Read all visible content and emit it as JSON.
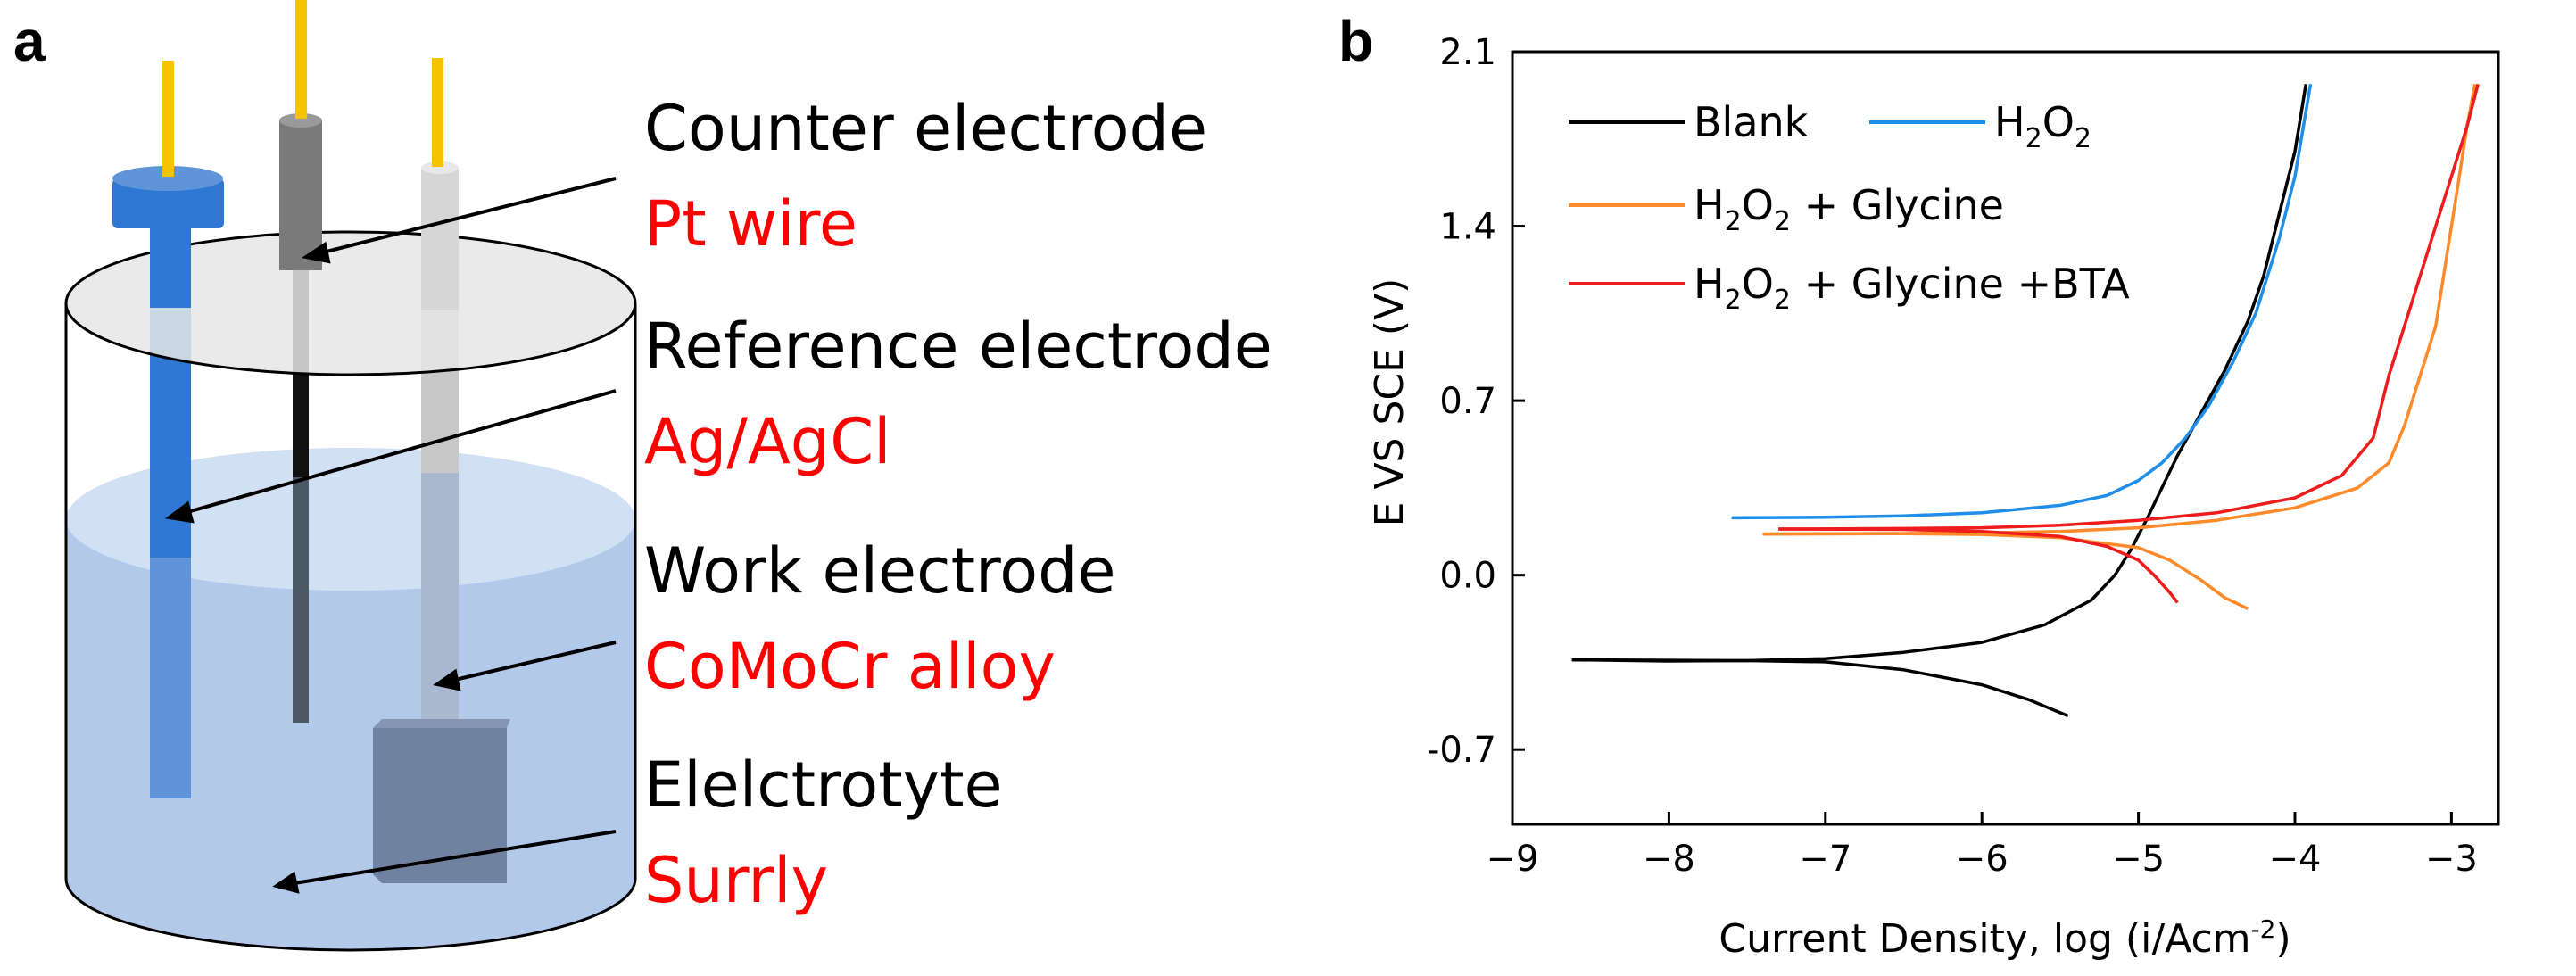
{
  "panel_a": {
    "letter": "a",
    "labels": [
      {
        "title": "Counter electrode",
        "material": "Pt wire"
      },
      {
        "title": "Reference electrode",
        "material": "Ag/AgCl"
      },
      {
        "title": "Work electrode",
        "material": "CoMoCr alloy"
      },
      {
        "title": "Elelctrotyte",
        "material": "Surrly"
      }
    ],
    "colors": {
      "label_black": "#000000",
      "label_red": "#ff0000",
      "electrolyte": "#b3c9ea",
      "reference_electrode": "#2f77d2",
      "counter_electrode": "#7a7a7a",
      "work_electrode": "#c8c8c8",
      "alloy_block": "#6f82a0",
      "wire": "#f7c300"
    }
  },
  "panel_b": {
    "letter": "b"
  },
  "chart_data": {
    "type": "line",
    "xlabel": "Current Density, log (i/Acm",
    "xlabel_sup": "-2",
    "xlabel_end": ")",
    "ylabel": "E VS SCE (V)",
    "xlim": [
      -9,
      -2.7
    ],
    "ylim": [
      -1.0,
      2.1
    ],
    "xticks": [
      -9,
      -8,
      -7,
      -6,
      -5,
      -4,
      -3
    ],
    "xtick_labels": [
      "−9",
      "−8",
      "−7",
      "−6",
      "−5",
      "−4",
      "−3"
    ],
    "yticks": [
      2.1,
      1.4,
      0.7,
      0.0,
      -0.7
    ],
    "ytick_labels": [
      "2.1",
      "1.4",
      "0.7",
      "0.0",
      "-0.7"
    ],
    "grid": false,
    "legend_position": "top-left",
    "series": [
      {
        "name": "Blank",
        "legend_parts": [
          "Blank"
        ],
        "color": "#000000",
        "segments": [
          [
            [
              -8.62,
              -0.34
            ],
            [
              -8.0,
              -0.345
            ],
            [
              -7.5,
              -0.343
            ],
            [
              -7.0,
              -0.335
            ],
            [
              -6.5,
              -0.31
            ],
            [
              -6.0,
              -0.27
            ],
            [
              -5.6,
              -0.2
            ],
            [
              -5.3,
              -0.1
            ],
            [
              -5.15,
              0.0
            ],
            [
              -5.05,
              0.1
            ],
            [
              -4.95,
              0.22
            ],
            [
              -4.85,
              0.35
            ],
            [
              -4.75,
              0.48
            ],
            [
              -4.6,
              0.65
            ],
            [
              -4.45,
              0.82
            ],
            [
              -4.3,
              1.02
            ],
            [
              -4.2,
              1.2
            ],
            [
              -4.1,
              1.45
            ],
            [
              -4.0,
              1.7
            ],
            [
              -3.93,
              1.97
            ]
          ],
          [
            [
              -8.62,
              -0.34
            ],
            [
              -7.5,
              -0.343
            ],
            [
              -7.0,
              -0.348
            ],
            [
              -6.5,
              -0.38
            ],
            [
              -6.0,
              -0.44
            ],
            [
              -5.7,
              -0.5
            ],
            [
              -5.45,
              -0.565
            ]
          ]
        ]
      },
      {
        "name": "H2O2",
        "legend_parts": [
          "H",
          "2",
          "O",
          "2"
        ],
        "color": "#1e8ee8",
        "segments": [
          [
            [
              -7.6,
              0.23
            ],
            [
              -7.0,
              0.232
            ],
            [
              -6.5,
              0.238
            ],
            [
              -6.0,
              0.25
            ],
            [
              -5.5,
              0.28
            ],
            [
              -5.2,
              0.32
            ],
            [
              -5.0,
              0.38
            ],
            [
              -4.85,
              0.45
            ],
            [
              -4.7,
              0.55
            ],
            [
              -4.55,
              0.68
            ],
            [
              -4.4,
              0.85
            ],
            [
              -4.25,
              1.05
            ],
            [
              -4.1,
              1.35
            ],
            [
              -4.0,
              1.6
            ],
            [
              -3.9,
              1.97
            ]
          ]
        ]
      },
      {
        "name": "H2O2 + Glycine",
        "legend_parts": [
          "H",
          "2",
          "O",
          "2",
          " + Glycine"
        ],
        "color": "#ff8a2a",
        "segments": [
          [
            [
              -7.4,
              0.165
            ],
            [
              -6.5,
              0.167
            ],
            [
              -6.0,
              0.17
            ],
            [
              -5.5,
              0.175
            ],
            [
              -5.0,
              0.19
            ],
            [
              -4.5,
              0.22
            ],
            [
              -4.0,
              0.27
            ],
            [
              -3.6,
              0.35
            ],
            [
              -3.4,
              0.45
            ],
            [
              -3.3,
              0.6
            ],
            [
              -3.2,
              0.8
            ],
            [
              -3.1,
              1.0
            ],
            [
              -3.05,
              1.2
            ],
            [
              -3.0,
              1.4
            ],
            [
              -2.95,
              1.6
            ],
            [
              -2.9,
              1.8
            ],
            [
              -2.85,
              1.97
            ]
          ],
          [
            [
              -7.4,
              0.165
            ],
            [
              -6.5,
              0.166
            ],
            [
              -6.0,
              0.163
            ],
            [
              -5.5,
              0.15
            ],
            [
              -5.0,
              0.11
            ],
            [
              -4.8,
              0.06
            ],
            [
              -4.6,
              -0.02
            ],
            [
              -4.45,
              -0.09
            ],
            [
              -4.3,
              -0.135
            ]
          ]
        ]
      },
      {
        "name": "H2O2 + Glycine +BTA",
        "legend_parts": [
          "H",
          "2",
          "O",
          "2",
          " + Glycine +BTA"
        ],
        "color": "#ee1c1c",
        "segments": [
          [
            [
              -7.3,
              0.185
            ],
            [
              -6.5,
              0.187
            ],
            [
              -6.0,
              0.19
            ],
            [
              -5.5,
              0.2
            ],
            [
              -5.0,
              0.22
            ],
            [
              -4.5,
              0.25
            ],
            [
              -4.0,
              0.31
            ],
            [
              -3.7,
              0.4
            ],
            [
              -3.5,
              0.55
            ],
            [
              -3.4,
              0.8
            ],
            [
              -3.3,
              1.0
            ],
            [
              -3.2,
              1.2
            ],
            [
              -3.1,
              1.4
            ],
            [
              -3.0,
              1.6
            ],
            [
              -2.9,
              1.8
            ],
            [
              -2.83,
              1.97
            ]
          ],
          [
            [
              -7.3,
              0.185
            ],
            [
              -6.5,
              0.183
            ],
            [
              -6.0,
              0.175
            ],
            [
              -5.5,
              0.155
            ],
            [
              -5.2,
              0.115
            ],
            [
              -5.0,
              0.06
            ],
            [
              -4.9,
              0.0
            ],
            [
              -4.8,
              -0.07
            ],
            [
              -4.75,
              -0.11
            ]
          ]
        ]
      }
    ]
  }
}
